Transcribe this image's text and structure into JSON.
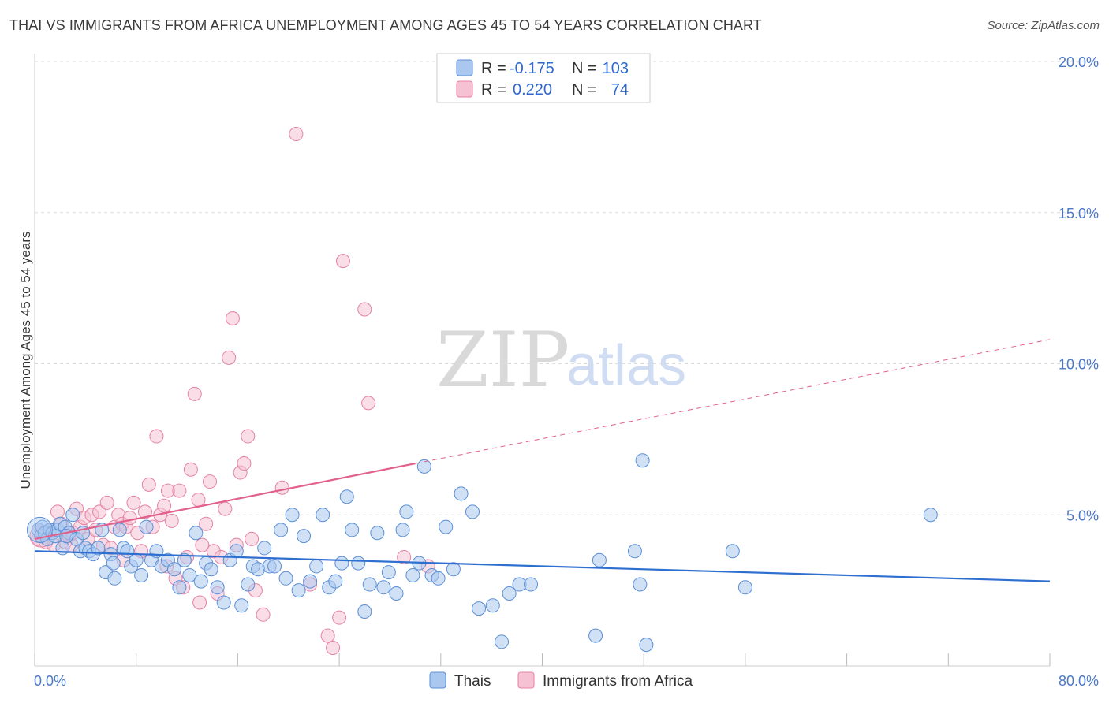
{
  "header": {
    "title": "THAI VS IMMIGRANTS FROM AFRICA UNEMPLOYMENT AMONG AGES 45 TO 54 YEARS CORRELATION CHART",
    "source": "Source: ZipAtlas.com"
  },
  "watermark": {
    "zip": "ZIP",
    "atlas": "atlas"
  },
  "colors": {
    "thai_fill": "#aac8ef",
    "thai_stroke": "#5b8fd6",
    "thai_line": "#2f6fd0",
    "africa_fill": "#f6c2d3",
    "africa_stroke": "#e582a4",
    "africa_line": "#e2608c",
    "grid": "#dddddd",
    "tick_label": "#4a78c8"
  },
  "legend": {
    "rows": [
      {
        "r_label": "R =",
        "r_value": "-0.175",
        "n_label": "N =",
        "n_value": "103"
      },
      {
        "r_label": "R =",
        "r_value": "0.220",
        "n_label": "N =",
        "n_value": "74"
      }
    ]
  },
  "bottom_legend": {
    "thai": "Thais",
    "africa": "Immigrants from Africa"
  },
  "chart_data": {
    "type": "scatter",
    "title": "THAI VS IMMIGRANTS FROM AFRICA UNEMPLOYMENT AMONG AGES 45 TO 54 YEARS CORRELATION CHART",
    "xlabel": "",
    "ylabel": "Unemployment Among Ages 45 to 54 years",
    "xlim": [
      0,
      80
    ],
    "ylim": [
      0,
      20
    ],
    "x_tick_labels": [
      "0.0%",
      "80.0%"
    ],
    "y_ticks": [
      5,
      10,
      15,
      20
    ],
    "y_tick_labels": [
      "5.0%",
      "10.0%",
      "15.0%",
      "20.0%"
    ],
    "grid": true,
    "series": [
      {
        "name": "Thais",
        "r": -0.175,
        "n": 103,
        "trend": {
          "x": [
            0,
            80
          ],
          "y": [
            3.8,
            2.8
          ]
        },
        "points": [
          [
            0.3,
            4.5
          ],
          [
            0.5,
            4.3
          ],
          [
            0.6,
            4.6
          ],
          [
            0.8,
            4.4
          ],
          [
            1.0,
            4.2
          ],
          [
            1.2,
            4.5
          ],
          [
            1.4,
            4.4
          ],
          [
            1.6,
            4.3
          ],
          [
            1.8,
            4.5
          ],
          [
            2.0,
            4.7
          ],
          [
            2.2,
            3.9
          ],
          [
            2.4,
            4.6
          ],
          [
            2.7,
            4.4
          ],
          [
            3.0,
            5.0
          ],
          [
            3.3,
            4.2
          ],
          [
            3.6,
            3.8
          ],
          [
            3.8,
            4.4
          ],
          [
            4.0,
            3.9
          ],
          [
            4.3,
            3.8
          ],
          [
            4.6,
            3.7
          ],
          [
            5.0,
            3.9
          ],
          [
            5.3,
            4.5
          ],
          [
            5.6,
            3.1
          ],
          [
            6.0,
            3.7
          ],
          [
            6.3,
            2.9
          ],
          [
            6.7,
            4.5
          ],
          [
            7.0,
            3.9
          ],
          [
            7.3,
            3.8
          ],
          [
            7.6,
            3.3
          ],
          [
            8.0,
            3.5
          ],
          [
            8.4,
            3.0
          ],
          [
            8.8,
            4.6
          ],
          [
            9.2,
            3.5
          ],
          [
            9.6,
            3.8
          ],
          [
            10.0,
            3.3
          ],
          [
            10.5,
            3.5
          ],
          [
            11.0,
            3.2
          ],
          [
            11.4,
            2.6
          ],
          [
            11.8,
            3.5
          ],
          [
            12.2,
            3.0
          ],
          [
            12.7,
            4.4
          ],
          [
            13.1,
            2.8
          ],
          [
            13.5,
            3.4
          ],
          [
            13.9,
            3.2
          ],
          [
            14.4,
            2.6
          ],
          [
            14.9,
            2.1
          ],
          [
            15.4,
            3.5
          ],
          [
            15.9,
            3.8
          ],
          [
            16.3,
            2.0
          ],
          [
            16.8,
            2.7
          ],
          [
            17.2,
            3.3
          ],
          [
            17.6,
            3.2
          ],
          [
            18.1,
            3.9
          ],
          [
            18.5,
            3.3
          ],
          [
            18.9,
            3.3
          ],
          [
            19.4,
            4.5
          ],
          [
            19.8,
            2.9
          ],
          [
            20.3,
            5.0
          ],
          [
            20.8,
            2.5
          ],
          [
            21.2,
            4.3
          ],
          [
            21.7,
            2.8
          ],
          [
            22.2,
            3.3
          ],
          [
            22.7,
            5.0
          ],
          [
            23.2,
            2.6
          ],
          [
            23.7,
            2.8
          ],
          [
            24.2,
            3.4
          ],
          [
            24.6,
            5.6
          ],
          [
            25.0,
            4.5
          ],
          [
            25.5,
            3.4
          ],
          [
            26.0,
            1.8
          ],
          [
            26.4,
            2.7
          ],
          [
            27.0,
            4.4
          ],
          [
            27.5,
            2.6
          ],
          [
            27.9,
            3.1
          ],
          [
            28.5,
            2.4
          ],
          [
            29.0,
            4.5
          ],
          [
            29.3,
            5.1
          ],
          [
            29.8,
            3.0
          ],
          [
            30.3,
            3.4
          ],
          [
            30.7,
            6.6
          ],
          [
            31.3,
            3.0
          ],
          [
            31.8,
            2.9
          ],
          [
            32.4,
            4.6
          ],
          [
            33.0,
            3.2
          ],
          [
            33.6,
            5.7
          ],
          [
            34.5,
            5.1
          ],
          [
            35.0,
            1.9
          ],
          [
            36.1,
            2.0
          ],
          [
            36.8,
            0.8
          ],
          [
            37.4,
            2.4
          ],
          [
            38.2,
            2.7
          ],
          [
            39.1,
            2.7
          ],
          [
            44.2,
            1.0
          ],
          [
            44.5,
            3.5
          ],
          [
            47.3,
            3.8
          ],
          [
            47.7,
            2.7
          ],
          [
            47.9,
            6.8
          ],
          [
            48.2,
            0.7
          ],
          [
            55.0,
            3.8
          ],
          [
            56.0,
            2.6
          ],
          [
            70.6,
            5.0
          ],
          [
            2.5,
            4.3
          ],
          [
            6.2,
            3.4
          ]
        ]
      },
      {
        "name": "Immigrants from Africa",
        "r": 0.22,
        "n": 74,
        "trend": {
          "x": [
            0,
            30
          ],
          "y": [
            4.2,
            6.7
          ]
        },
        "trend_extension": {
          "x": [
            30,
            80
          ],
          "y": [
            6.7,
            10.8
          ]
        },
        "points": [
          [
            0.3,
            4.2
          ],
          [
            0.6,
            4.4
          ],
          [
            0.9,
            4.1
          ],
          [
            1.2,
            4.5
          ],
          [
            1.5,
            4.0
          ],
          [
            1.8,
            5.1
          ],
          [
            2.1,
            4.7
          ],
          [
            2.4,
            4.1
          ],
          [
            2.7,
            4.3
          ],
          [
            3.0,
            4.4
          ],
          [
            3.3,
            5.2
          ],
          [
            3.6,
            4.6
          ],
          [
            3.9,
            4.9
          ],
          [
            4.2,
            4.2
          ],
          [
            4.5,
            5.0
          ],
          [
            4.8,
            4.5
          ],
          [
            5.1,
            5.1
          ],
          [
            5.4,
            4.0
          ],
          [
            5.7,
            5.4
          ],
          [
            6.0,
            3.9
          ],
          [
            6.3,
            4.6
          ],
          [
            6.6,
            5.0
          ],
          [
            6.9,
            4.7
          ],
          [
            7.2,
            4.6
          ],
          [
            7.5,
            4.9
          ],
          [
            7.8,
            5.4
          ],
          [
            8.1,
            4.4
          ],
          [
            8.4,
            3.8
          ],
          [
            8.7,
            5.1
          ],
          [
            9.0,
            6.0
          ],
          [
            9.3,
            4.6
          ],
          [
            9.6,
            7.6
          ],
          [
            9.9,
            5.0
          ],
          [
            10.2,
            5.3
          ],
          [
            10.5,
            5.8
          ],
          [
            10.8,
            4.8
          ],
          [
            11.1,
            2.9
          ],
          [
            11.4,
            5.8
          ],
          [
            11.7,
            2.6
          ],
          [
            12.0,
            3.6
          ],
          [
            12.3,
            6.5
          ],
          [
            12.6,
            9.0
          ],
          [
            12.9,
            5.5
          ],
          [
            13.2,
            4.0
          ],
          [
            13.5,
            4.7
          ],
          [
            13.8,
            6.1
          ],
          [
            14.1,
            3.8
          ],
          [
            14.4,
            2.4
          ],
          [
            14.7,
            3.6
          ],
          [
            15.0,
            5.2
          ],
          [
            15.3,
            10.2
          ],
          [
            15.6,
            11.5
          ],
          [
            15.9,
            4.0
          ],
          [
            16.2,
            6.4
          ],
          [
            16.5,
            6.7
          ],
          [
            16.8,
            7.6
          ],
          [
            17.1,
            4.2
          ],
          [
            17.4,
            2.5
          ],
          [
            18.0,
            1.7
          ],
          [
            19.5,
            5.9
          ],
          [
            20.6,
            17.6
          ],
          [
            21.7,
            2.7
          ],
          [
            23.1,
            1.0
          ],
          [
            23.5,
            0.6
          ],
          [
            24.0,
            1.6
          ],
          [
            24.3,
            13.4
          ],
          [
            26.0,
            11.8
          ],
          [
            26.3,
            8.7
          ],
          [
            29.1,
            3.6
          ],
          [
            31.0,
            3.3
          ],
          [
            10.4,
            3.3
          ],
          [
            13.0,
            2.1
          ],
          [
            7.0,
            3.5
          ],
          [
            2.9,
            4.0
          ]
        ]
      }
    ]
  }
}
